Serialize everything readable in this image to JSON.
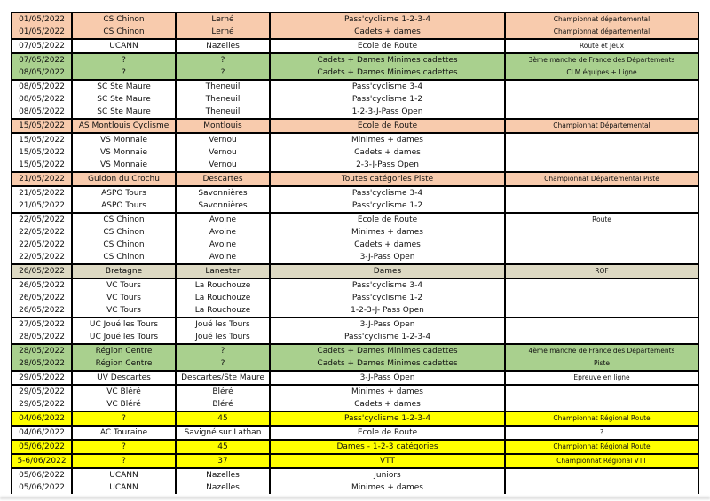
{
  "table": {
    "description_columns": [
      "date",
      "club",
      "location",
      "category",
      "note"
    ],
    "colors": {
      "orange": "#F8CBAD",
      "green": "#A9D08E",
      "beige": "#DDD9C3",
      "yellow": "#FFFF00",
      "white": "#FFFFFF",
      "border": "#000000"
    },
    "groups": [
      {
        "color": "orange",
        "rows": [
          {
            "date": "01/05/2022",
            "club": "CS Chinon",
            "location": "Lerné",
            "category": "Pass'cyclisme 1-2-3-4",
            "note": "Championnat départemental"
          },
          {
            "date": "01/05/2022",
            "club": "CS Chinon",
            "location": "Lerné",
            "category": "Cadets + dames",
            "note": "Championnat départemental"
          }
        ]
      },
      {
        "color": "white",
        "rows": [
          {
            "date": "07/05/2022",
            "club": "UCANN",
            "location": "Nazelles",
            "category": "Ecole de Route",
            "note": "Route et Jeux"
          }
        ]
      },
      {
        "color": "green",
        "rows": [
          {
            "date": "07/05/2022",
            "club": "?",
            "location": "?",
            "category": "Cadets + Dames Minimes cadettes",
            "note": "3ème manche de France des Départements"
          },
          {
            "date": "08/05/2022",
            "club": "?",
            "location": "?",
            "category": "Cadets + Dames Minimes cadettes",
            "note": "CLM équipes + Ligne"
          }
        ]
      },
      {
        "color": "white",
        "rows": [
          {
            "date": "08/05/2022",
            "club": "SC Ste Maure",
            "location": "Theneuil",
            "category": "Pass'cyclisme 3-4",
            "note": ""
          },
          {
            "date": "08/05/2022",
            "club": "SC Ste Maure",
            "location": "Theneuil",
            "category": "Pass'cyclisme 1-2",
            "note": ""
          },
          {
            "date": "08/05/2022",
            "club": "SC Ste Maure",
            "location": "Theneuil",
            "category": "1-2-3-J-Pass Open",
            "note": ""
          }
        ]
      },
      {
        "color": "orange",
        "rows": [
          {
            "date": "15/05/2022",
            "club": "AS Montlouis Cyclisme",
            "location": "Montlouis",
            "category": "Ecole de Route",
            "note": "Championnat Départemental"
          }
        ]
      },
      {
        "color": "white",
        "rows": [
          {
            "date": "15/05/2022",
            "club": "VS Monnaie",
            "location": "Vernou",
            "category": "Minimes + dames",
            "note": ""
          },
          {
            "date": "15/05/2022",
            "club": "VS Monnaie",
            "location": "Vernou",
            "category": "Cadets + dames",
            "note": ""
          },
          {
            "date": "15/05/2022",
            "club": "VS Monnaie",
            "location": "Vernou",
            "category": "2-3-J-Pass Open",
            "note": ""
          }
        ]
      },
      {
        "color": "orange",
        "rows": [
          {
            "date": "21/05/2022",
            "club": "Guidon du Crochu",
            "location": "Descartes",
            "category": "Toutes catégories Piste",
            "note": "Championnat Départemental Piste"
          }
        ]
      },
      {
        "color": "white",
        "rows": [
          {
            "date": "21/05/2022",
            "club": "ASPO Tours",
            "location": "Savonnières",
            "category": "Pass'cyclisme 3-4",
            "note": ""
          },
          {
            "date": "21/05/2022",
            "club": "ASPO Tours",
            "location": "Savonnières",
            "category": "Pass'cyclisme 1-2",
            "note": ""
          }
        ]
      },
      {
        "color": "white",
        "rows": [
          {
            "date": "22/05/2022",
            "club": "CS Chinon",
            "location": "Avoine",
            "category": "Ecole de Route",
            "note": "Route"
          },
          {
            "date": "22/05/2022",
            "club": "CS Chinon",
            "location": "Avoine",
            "category": "Minimes + dames",
            "note": ""
          },
          {
            "date": "22/05/2022",
            "club": "CS Chinon",
            "location": "Avoine",
            "category": "Cadets + dames",
            "note": ""
          },
          {
            "date": "22/05/2022",
            "club": "CS Chinon",
            "location": "Avoine",
            "category": "3-J-Pass Open",
            "note": ""
          }
        ]
      },
      {
        "color": "beige",
        "rows": [
          {
            "date": "26/05/2022",
            "club": "Bretagne",
            "location": "Lanester",
            "category": "Dames",
            "note": "ROF"
          }
        ]
      },
      {
        "color": "white",
        "rows": [
          {
            "date": "26/05/2022",
            "club": "VC Tours",
            "location": "La Rouchouze",
            "category": "Pass'cyclisme 3-4",
            "note": ""
          },
          {
            "date": "26/05/2022",
            "club": "VC Tours",
            "location": "La Rouchouze",
            "category": "Pass'cyclisme 1-2",
            "note": ""
          },
          {
            "date": "26/05/2022",
            "club": "VC Tours",
            "location": "La Rouchouze",
            "category": "1-2-3-J- Pass Open",
            "note": ""
          }
        ]
      },
      {
        "color": "white",
        "rows": [
          {
            "date": "27/05/2022",
            "club": "UC Joué les Tours",
            "location": "Joué les Tours",
            "category": "3-J-Pass Open",
            "note": ""
          },
          {
            "date": "28/05/2022",
            "club": "UC Joué les Tours",
            "location": "Joué les Tours",
            "category": "Pass'cyclisme 1-2-3-4",
            "note": ""
          }
        ]
      },
      {
        "color": "green",
        "rows": [
          {
            "date": "28/05/2022",
            "club": "Région Centre",
            "location": "?",
            "category": "Cadets + Dames Minimes cadettes",
            "note": "4ème manche de France des Départements"
          },
          {
            "date": "28/05/2022",
            "club": "Région Centre",
            "location": "?",
            "category": "Cadets + Dames Minimes cadettes",
            "note": "Piste"
          }
        ]
      },
      {
        "color": "white",
        "rows": [
          {
            "date": "29/05/2022",
            "club": "UV Descartes",
            "location": "Descartes/Ste Maure",
            "category": "3-J-Pass Open",
            "note": "Epreuve en ligne"
          }
        ]
      },
      {
        "color": "white",
        "rows": [
          {
            "date": "29/05/2022",
            "club": "VC Bléré",
            "location": "Bléré",
            "category": "Minimes + dames",
            "note": ""
          },
          {
            "date": "29/05/2022",
            "club": "VC Bléré",
            "location": "Bléré",
            "category": "Cadets + dames",
            "note": ""
          }
        ]
      },
      {
        "color": "yellow",
        "rows": [
          {
            "date": "04/06/2022",
            "club": "?",
            "location": "45",
            "category": "Pass'cyclisme 1-2-3-4",
            "note": "Championnat Régional Route"
          }
        ]
      },
      {
        "color": "white",
        "rows": [
          {
            "date": "04/06/2022",
            "club": "AC Touraine",
            "location": "Savigné sur Lathan",
            "category": "Ecole de Route",
            "note": "?"
          }
        ]
      },
      {
        "color": "yellow",
        "rows": [
          {
            "date": "05/06/2022",
            "club": "?",
            "location": "45",
            "category": "Dames - 1-2-3 catégories",
            "note": "Championnat Régional Route"
          }
        ]
      },
      {
        "color": "yellow",
        "rows": [
          {
            "date": "5-6/06/2022",
            "club": "?",
            "location": "37",
            "category": "VTT",
            "note": "Championnat Régional VTT"
          }
        ]
      },
      {
        "color": "white",
        "rows": [
          {
            "date": "05/06/2022",
            "club": "UCANN",
            "location": "Nazelles",
            "category": "Juniors",
            "note": ""
          },
          {
            "date": "05/06/2022",
            "club": "UCANN",
            "location": "Nazelles",
            "category": "Minimes + dames",
            "note": ""
          }
        ]
      }
    ]
  }
}
